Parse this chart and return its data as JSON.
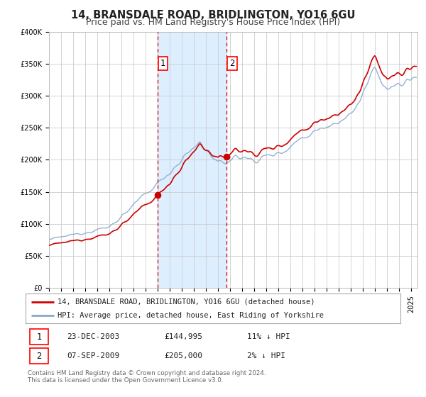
{
  "title": "14, BRANSDALE ROAD, BRIDLINGTON, YO16 6GU",
  "subtitle": "Price paid vs. HM Land Registry's House Price Index (HPI)",
  "ylim": [
    0,
    400000
  ],
  "yticks": [
    0,
    50000,
    100000,
    150000,
    200000,
    250000,
    300000,
    350000,
    400000
  ],
  "ytick_labels": [
    "£0",
    "£50K",
    "£100K",
    "£150K",
    "£200K",
    "£250K",
    "£300K",
    "£350K",
    "£400K"
  ],
  "xlim_start": 1995.0,
  "xlim_end": 2025.5,
  "t1": 2003.97,
  "t2": 2009.68,
  "p1": 144995,
  "p2": 205000,
  "shade_start": 2003.97,
  "shade_end": 2009.68,
  "legend_line1": "14, BRANSDALE ROAD, BRIDLINGTON, YO16 6GU (detached house)",
  "legend_line2": "HPI: Average price, detached house, East Riding of Yorkshire",
  "table_row1": [
    "1",
    "23-DEC-2003",
    "£144,995",
    "11% ↓ HPI"
  ],
  "table_row2": [
    "2",
    "07-SEP-2009",
    "£205,000",
    "2% ↓ HPI"
  ],
  "footnote1": "Contains HM Land Registry data © Crown copyright and database right 2024.",
  "footnote2": "This data is licensed under the Open Government Licence v3.0.",
  "price_color": "#cc0000",
  "hpi_color": "#88aacc",
  "shade_color": "#ddeeff",
  "grid_color": "#cccccc",
  "bg_color": "#ffffff",
  "title_fontsize": 10.5,
  "subtitle_fontsize": 9,
  "tick_fontsize": 7,
  "legend_fontsize": 7.5,
  "table_fontsize": 8
}
